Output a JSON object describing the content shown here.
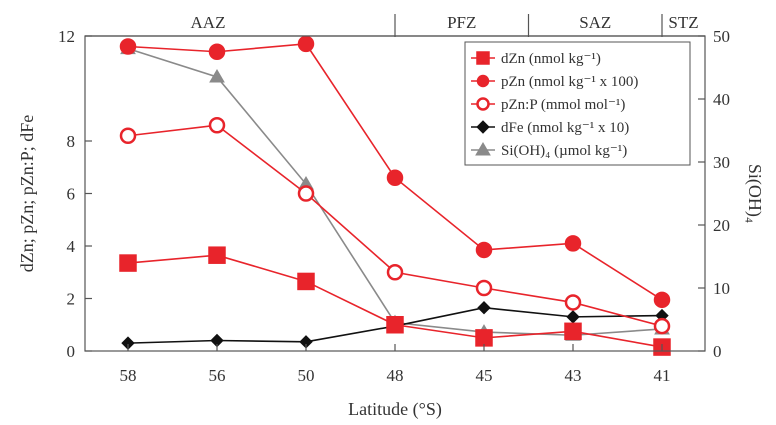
{
  "chart_data": {
    "type": "line",
    "xlabel": "Latitude (°S)",
    "ylabel": "dZn; pZn; pZn:P; dFe",
    "y2label": "Si(OH)₄",
    "categories": [
      "58",
      "56",
      "50",
      "48",
      "45",
      "43",
      "41"
    ],
    "ylim": [
      0,
      12
    ],
    "y2lim": [
      0,
      50
    ],
    "yticks": [
      "0",
      "2",
      "4",
      "6",
      "8",
      "12"
    ],
    "y2ticks": [
      "0",
      "10",
      "20",
      "30",
      "40",
      "50"
    ],
    "zones": [
      {
        "label": "AAZ",
        "from": 0,
        "to": 3
      },
      {
        "label": "PFZ",
        "from": 3,
        "to": 4.5
      },
      {
        "label": "SAZ",
        "from": 4.5,
        "to": 6
      },
      {
        "label": "STZ",
        "from": 6,
        "to": 6.6
      }
    ],
    "legend_position": "top-right",
    "series": [
      {
        "name": "dZn (nmol kg⁻¹)",
        "axis": "left",
        "marker": "square",
        "color": "#e8242b",
        "filled": true,
        "values": [
          3.35,
          3.65,
          2.65,
          1.0,
          0.5,
          0.75,
          0.15
        ]
      },
      {
        "name": "pZn (nmol kg⁻¹ x 100)",
        "axis": "left",
        "marker": "circle",
        "color": "#e8242b",
        "filled": true,
        "values": [
          11.6,
          11.4,
          11.7,
          6.6,
          3.85,
          4.1,
          1.95
        ]
      },
      {
        "name": "pZn:P (mmol mol⁻¹)",
        "axis": "left",
        "marker": "circle-open",
        "color": "#e8242b",
        "filled": false,
        "values": [
          8.2,
          8.6,
          6.0,
          3.0,
          2.4,
          1.85,
          0.95
        ]
      },
      {
        "name": "dFe (nmol kg⁻¹ x 10)",
        "axis": "left",
        "marker": "diamond",
        "color": "#111111",
        "filled": true,
        "values": [
          0.3,
          0.4,
          0.35,
          0.95,
          1.65,
          1.3,
          1.35
        ]
      },
      {
        "name": "Si(OH)₄ (µmol kg⁻¹)",
        "axis": "right",
        "marker": "triangle",
        "color": "#8a8a8a",
        "filled": true,
        "values": [
          48.0,
          43.5,
          26.5,
          4.5,
          3.0,
          2.5,
          3.5
        ]
      }
    ]
  }
}
